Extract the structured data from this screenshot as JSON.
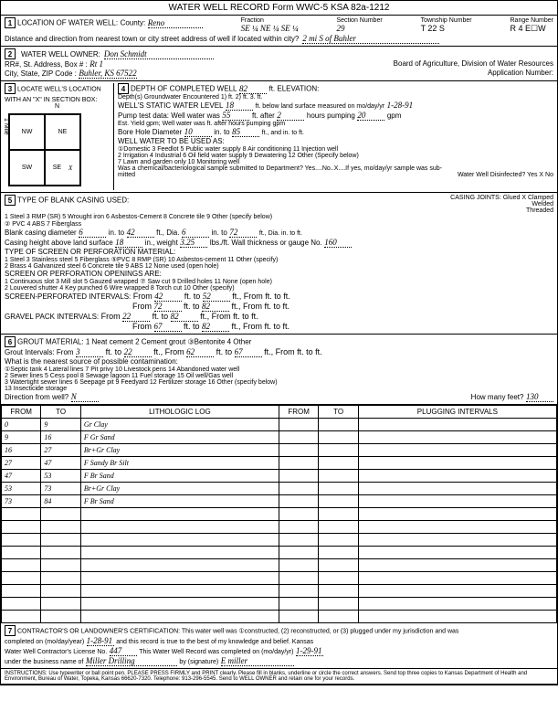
{
  "header": {
    "title": "WATER WELL RECORD   Form WWC-5   KSA 82a-1212"
  },
  "loc": {
    "label": "LOCATION OF WATER WELL:",
    "county_label": "County:",
    "county": "Reno",
    "fraction_label": "Fraction",
    "fraction": "SE ¼  NE ¼  SE ¼",
    "section_label": "Section Number",
    "section": "29",
    "township_label": "Township Number",
    "township": "T  22  S",
    "range_label": "Range Number",
    "range": "R   4   E☐W",
    "dist_label": "Distance and direction from nearest town or city street address of well if located within city?",
    "dist": "2 mi  S of Buhler"
  },
  "owner": {
    "label": "WATER WELL OWNER:",
    "name": "Don Schmidt",
    "addr_label": "RR#, St. Address, Box # :",
    "addr": "Rt 1",
    "city_label": "City, State, ZIP Code :",
    "city": "Buhler, KS  67522",
    "board": "Board of Agriculture, Division of Water Resources",
    "app": "Application Number:"
  },
  "locate": {
    "label": "LOCATE WELL'S LOCATION WITH AN \"X\" IN SECTION BOX:",
    "n": "N",
    "nw": "NW",
    "ne": "NE",
    "sw": "SW",
    "se": "SE",
    "mile": "1 Mile",
    "x": "X"
  },
  "depth": {
    "label": "DEPTH OF COMPLETED WELL",
    "val": "82",
    "ft_elev": "ft. ELEVATION:",
    "gw_label": "Depth(s) Groundwater Encountered   1)          ft.   2)          ft.   3.          ft.",
    "static_label": "WELL'S STATIC WATER LEVEL",
    "static": "18",
    "static_suffix": "ft. below land surface measured on mo/day/yr",
    "static_date": "1-28-91",
    "pump_label": "Pump test data:  Well water was",
    "pump_val": "55",
    "pump_after": "ft. after",
    "pump_hrs": "2",
    "pump_hrs_label": "hours pumping",
    "pump_gpm": "20",
    "gpm": "gpm",
    "est_label": "Est. Yield           gpm;  Well water was           ft. after           hours pumping           gpm",
    "bore_label": "Bore Hole Diameter",
    "bore": "10",
    "bore_to": "in. to",
    "bore_to_val": "85",
    "bore_suffix": "ft., and           in. to           ft.",
    "use_label": "WELL WATER TO BE USED AS:",
    "uses": "①Domestic   3 Feedlot   5 Public water supply   8 Air conditioning   11 Injection well\n2 Irrigation   4 Industrial   6 Oil field water supply   9 Dewatering   12 Other (Specify below)\n                              7 Lawn and garden only   10 Monitoring well",
    "chem_label": "Was a chemical/bacteriological sample submitted to Department? Yes....No..X....If yes, mo/day/yr sample was sub-",
    "mitted": "mitted",
    "disinfect": "Water Well Disinfected? Yes X    No"
  },
  "casing": {
    "label": "TYPE OF BLANK CASING USED:",
    "opts": "1 Steel     3 RMP (SR)     5 Wrought iron     6 Asbestos-Cement     8 Concrete tile     9 Other (specify below)",
    "pvc": "② PVC     4 ABS     7 Fiberglass",
    "joints": "CASING JOINTS: Glued X    Clamped      \nWelded       \nThreaded       ",
    "dia_label": "Blank casing diameter",
    "dia1": "6",
    "in_to": "in. to",
    "dia2": "42",
    "ft_dia": "ft., Dia.",
    "dia3": "6",
    "dia4": "72",
    "suffix": "ft., Dia.         in. to         ft.",
    "height_label": "Casing height above land surface",
    "height": "18",
    "weight_label": "in., weight",
    "weight": "3.25",
    "wall_label": "lbs./ft. Wall thickness or gauge No.",
    "wall": "160",
    "screen_label": "TYPE OF SCREEN OR PERFORATION MATERIAL:",
    "screen_opts": "1 Steel   3 Stainless steel   5 Fiberglass   ⑤PVC   8 RMP (SR)   10 Asbestos-cement   11 Other (specify)\n2 Brass   4 Galvanized steel   6 Concrete tile   9 ABS   12 None used (open hole)",
    "open_label": "SCREEN OR PERFORATION OPENINGS ARE:",
    "open_opts": "1 Continuous slot   3 Mill slot   5 Gauzed wrapped   ⑦ Saw cut   9 Drilled holes   11 None (open hole)\n2 Louvered shutter   4 Key punched   6 Wire wrapped   8 Torch cut   10 Other (specify)",
    "perf_label": "SCREEN-PERFORATED INTERVALS:",
    "perf": [
      [
        "42",
        "52"
      ],
      [
        "72",
        "82"
      ]
    ],
    "gravel_label": "GRAVEL PACK INTERVALS:",
    "gravel": [
      [
        "22",
        "82"
      ],
      [
        "67",
        "82"
      ]
    ]
  },
  "grout": {
    "label": "GROUT MATERIAL:   1 Neat cement   2 Cement grout   ③Bentonite   4 Other",
    "int_label": "Grout Intervals:   From",
    "from1": "3",
    "to1": "22",
    "from2": "62",
    "to2": "67",
    "contam_label": "What is the nearest source of possible contamination:",
    "contam_opts": "①Septic tank   4 Lateral lines   7 Pit privy   10 Livestock pens   14 Abandoned water well\n2 Sewer lines   5 Cess pool   8 Sewage lagoon   11 Fuel storage   15 Oil well/Gas well\n3 Watertight sewer lines   6 Seepage pit   9 Feedyard   12 Fertilizer storage   16 Other (specify below)\n                                                        13 Insecticide storage",
    "dir_label": "Direction from well?",
    "dir": "N",
    "feet_label": "How many feet?",
    "feet": "130"
  },
  "log": {
    "headers": [
      "FROM",
      "TO",
      "LITHOLOGIC LOG",
      "FROM",
      "TO",
      "PLUGGING INTERVALS"
    ],
    "rows": [
      [
        "0",
        "9",
        "Gr Clay",
        "",
        "",
        ""
      ],
      [
        "9",
        "16",
        "F Gr Sand",
        "",
        "",
        ""
      ],
      [
        "16",
        "27",
        "Br+Gr Clay",
        "",
        "",
        ""
      ],
      [
        "27",
        "47",
        "F Sandy Br Silt",
        "",
        "",
        ""
      ],
      [
        "47",
        "53",
        "F    Br Sand",
        "",
        "",
        ""
      ],
      [
        "53",
        "73",
        "Br+Gr Clay",
        "",
        "",
        ""
      ],
      [
        "73",
        "84",
        "F  Br Sand",
        "",
        "",
        ""
      ],
      [
        "",
        "",
        "",
        "",
        "",
        ""
      ],
      [
        "",
        "",
        "",
        "",
        "",
        ""
      ],
      [
        "",
        "",
        "",
        "",
        "",
        ""
      ],
      [
        "",
        "",
        "",
        "",
        "",
        ""
      ],
      [
        "",
        "",
        "",
        "",
        "",
        ""
      ],
      [
        "",
        "",
        "",
        "",
        "",
        ""
      ],
      [
        "",
        "",
        "",
        "",
        "",
        ""
      ],
      [
        "",
        "",
        "",
        "",
        "",
        ""
      ],
      [
        "",
        "",
        "",
        "",
        "",
        ""
      ]
    ]
  },
  "cert": {
    "label": "CONTRACTOR'S OR LANDOWNER'S CERTIFICATION: This water well was ①constructed, (2) reconstructed, or (3) plugged under my jurisdiction and was",
    "l2": "completed on (mo/day/year)",
    "date": "1-28-91",
    "l2b": "and this record is true to the best of my knowledge and belief. Kansas",
    "l3": "Water Well Contractor's License No.",
    "lic": "447",
    "l3b": "This Water Well Record was completed on (mo/day/yr)",
    "date2": "1-29-91",
    "l4": "under the business name of",
    "biz": "Miller Drilling",
    "l4b": "by (signature)",
    "sig": "E miller"
  },
  "instr": "INSTRUCTIONS: Use typewriter or ball point pen. PLEASE PRESS FIRMLY and PRINT clearly. Please fill in blanks, underline or circle the correct answers. Send top three copies to Kansas Department of Health and Environment, Bureau of Water, Topeka, Kansas 66620-7320. Telephone: 913-296-5545. Send to WELL OWNER and retain one for your records.",
  "side": "OFFICE USE ONLY    T.           R.           E/W           SEC."
}
